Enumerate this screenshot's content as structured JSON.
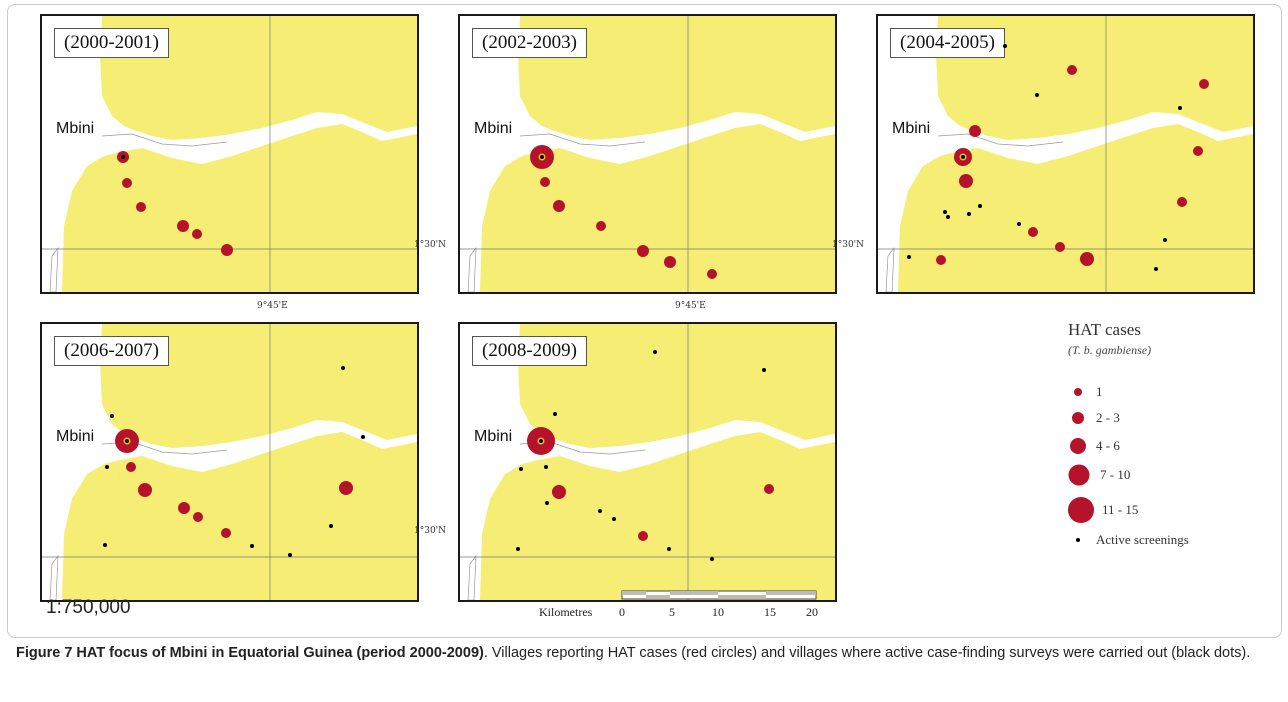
{
  "panels": [
    {
      "period": "(2000-2001)",
      "town": "Mbini",
      "lat_label": "1°30'N",
      "lon_label": "9°45'E"
    },
    {
      "period": "(2002-2003)",
      "town": "Mbini",
      "lat_label": "1°30'N",
      "lon_label": "9°45'E"
    },
    {
      "period": "(2004-2005)",
      "town": "Mbini",
      "lat_label": "",
      "lon_label": ""
    },
    {
      "period": "(2006-2007)",
      "town": "Mbini",
      "lat_label": "1°30'N",
      "lon_label": ""
    },
    {
      "period": "(2008-2009)",
      "town": "Mbini",
      "lat_label": "",
      "lon_label": ""
    }
  ],
  "legend": {
    "title": "HAT cases",
    "subtitle": "(T. b. gambiense)",
    "items": [
      "1",
      "2 - 3",
      "4 - 6",
      "7 - 10",
      "11 - 15"
    ],
    "screening_label": "Active screenings"
  },
  "scale": {
    "ratio": "1:750,000",
    "unit_label": "Kilometres",
    "ticks": [
      "0",
      "5",
      "10",
      "15",
      "20"
    ]
  },
  "caption": {
    "bold": "Figure 7 HAT focus of Mbini in Equatorial Guinea (period 2000-2009)",
    "text": ". Villages reporting HAT cases (red circles) and villages where active case-finding surveys were carried out (black dots)."
  },
  "colors": {
    "land": "#f6ee74",
    "river": "#ffffff",
    "case": "#b5132b",
    "screening": "#000000"
  }
}
